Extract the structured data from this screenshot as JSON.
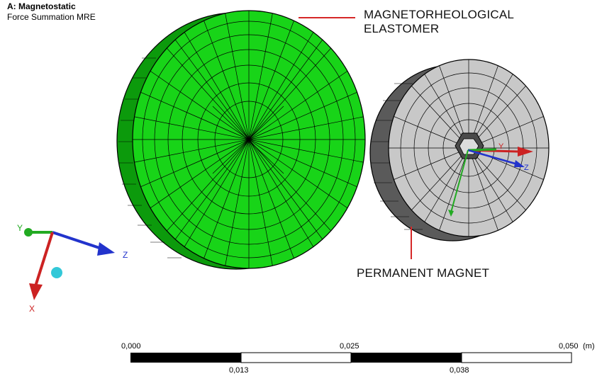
{
  "header": {
    "title": "A: Magnetostatic",
    "subtitle": "Force Summation MRE"
  },
  "annotations": {
    "mre_line1": "MAGNETORHEOLOGICAL",
    "mre_line2": "ELASTOMER",
    "magnet": "PERMANENT MAGNET"
  },
  "colors": {
    "mre_face": "#18d418",
    "mre_side": "#0c9a0c",
    "magnet_face": "#c8c8c8",
    "magnet_side": "#5a5a5a",
    "callout_line": "#d62828",
    "axis_x": "#cc2222",
    "axis_y": "#22aa22",
    "axis_z": "#2233cc"
  },
  "triad": {
    "x_label": "X",
    "y_label": "Y",
    "z_label": "Z",
    "icons": [
      "axis-triad-icon",
      "isometric-ball-icon"
    ]
  },
  "local_axes": {
    "y_label": "Y",
    "z_label": "Z"
  },
  "scale_bar": {
    "top_labels": [
      "0,000",
      "0,025",
      "0,050"
    ],
    "bottom_labels": [
      "0,013",
      "0,038"
    ],
    "unit": "(m)"
  }
}
